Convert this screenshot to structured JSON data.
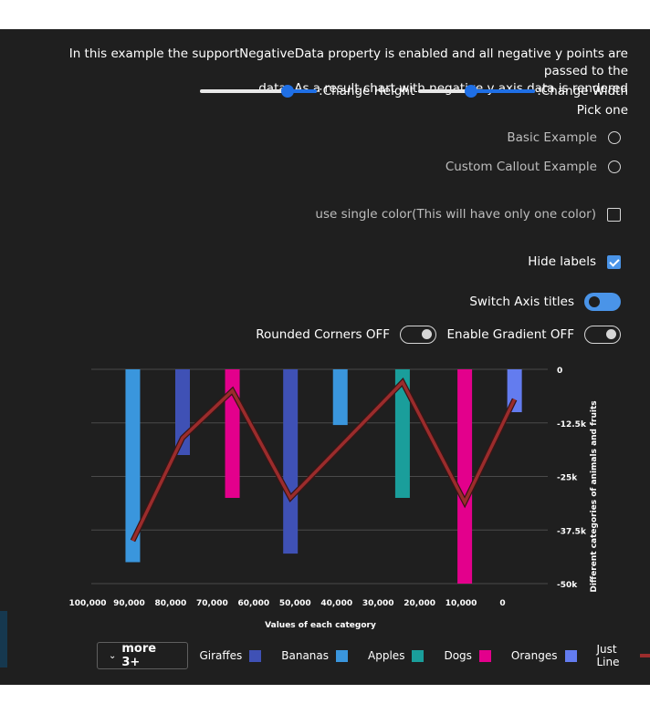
{
  "description": "In this example the supportNegativeData property is enabled and all negative y points are passed to the data. As a result chart with negative y axis data is rendered",
  "description_line1": "In this example the supportNegativeData property is enabled and all negative y points are passed to the",
  "description_line2": ".data. As a result chart with negative y axis data is rendered",
  "sliders": {
    "height_label": ":Change Height",
    "width_label": ":Change Width",
    "height_value": 0.75,
    "width_value": 0.45
  },
  "pick_label": "Pick one",
  "options": {
    "basic": "Basic Example",
    "custom_callout": "Custom Callout Example",
    "single_color": "use single color(This will have only one color)",
    "hide_labels": "Hide labels",
    "switch_axis": "Switch Axis titles",
    "rounded": "Rounded Corners OFF",
    "gradient": "Enable Gradient OFF"
  },
  "states": {
    "basic": false,
    "custom_callout": false,
    "single_color": false,
    "hide_labels": true,
    "switch_axis": true,
    "rounded": false,
    "gradient": false
  },
  "colors": {
    "giraffes": "#3f51b5",
    "bananas": "#3a96dd",
    "apples": "#1a9e9b",
    "dogs": "#e3008c",
    "oranges": "#637cef",
    "line": "#9b2c2c"
  },
  "chart_data": {
    "type": "bar",
    "orientation": "vertical",
    "xlabel": "Values of each category",
    "ylabel": "Different categories of animals and fruits",
    "x_reversed": true,
    "xlim": [
      100000,
      -10000
    ],
    "ylim": [
      -50000,
      0
    ],
    "x_ticks": [
      "100,000",
      "90,000",
      "80,000",
      "70,000",
      "60,000",
      "50,000",
      "40,000",
      "30,000",
      "20,000",
      "10,000",
      "0"
    ],
    "y_ticks": [
      "0",
      "-12.5k",
      "-25k",
      "-37.5k",
      "-50k"
    ],
    "y_tick_values": [
      0,
      -12500,
      -25000,
      -37500,
      -50000
    ],
    "grid": true,
    "bars": [
      {
        "x": 90000,
        "y": -45000,
        "series": "Bananas"
      },
      {
        "x": 78000,
        "y": -20000,
        "series": "Giraffes"
      },
      {
        "x": 66000,
        "y": -30000,
        "series": "Dogs"
      },
      {
        "x": 52000,
        "y": -43000,
        "series": "Giraffes"
      },
      {
        "x": 40000,
        "y": -13000,
        "series": "Bananas"
      },
      {
        "x": 25000,
        "y": -30000,
        "series": "Apples"
      },
      {
        "x": 10000,
        "y": -50000,
        "series": "Dogs"
      },
      {
        "x": -2000,
        "y": -10000,
        "series": "Oranges"
      }
    ],
    "line": {
      "name": "Just Line",
      "points": [
        {
          "x": 90000,
          "y": -40000
        },
        {
          "x": 78000,
          "y": -16000
        },
        {
          "x": 66000,
          "y": -5000
        },
        {
          "x": 52000,
          "y": -30000
        },
        {
          "x": 25000,
          "y": -3000
        },
        {
          "x": 10000,
          "y": -31000
        },
        {
          "x": -2000,
          "y": -7000
        }
      ]
    },
    "legend": {
      "more_label": "more 3+",
      "items": [
        {
          "name": "Giraffes",
          "color": "#3f51b5",
          "kind": "box"
        },
        {
          "name": "Bananas",
          "color": "#3a96dd",
          "kind": "box"
        },
        {
          "name": "Apples",
          "color": "#1a9e9b",
          "kind": "box"
        },
        {
          "name": "Dogs",
          "color": "#e3008c",
          "kind": "box"
        },
        {
          "name": "Oranges",
          "color": "#637cef",
          "kind": "box"
        },
        {
          "name": "Just Line",
          "color": "#9b2c2c",
          "kind": "line"
        }
      ],
      "placement": "bottom"
    }
  }
}
